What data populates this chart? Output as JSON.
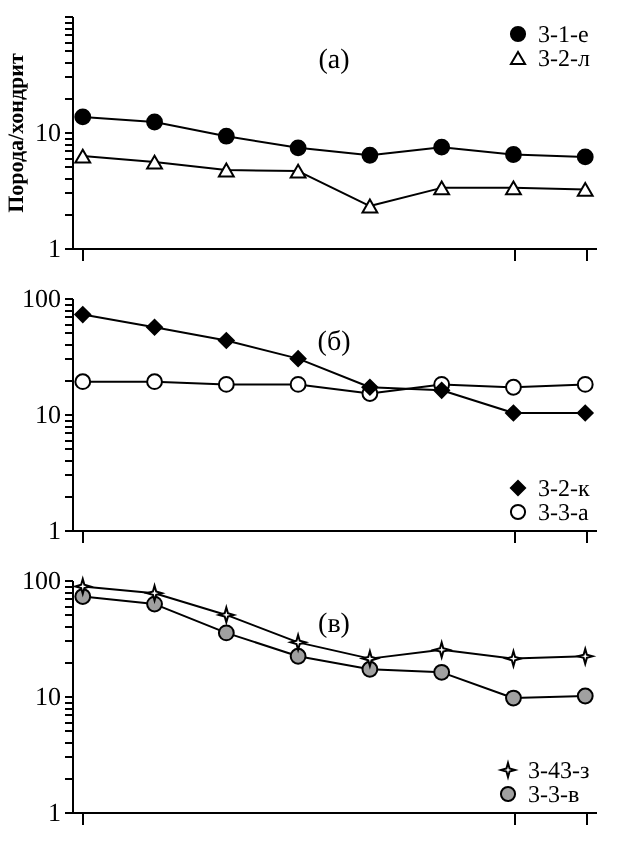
{
  "chart_data": [
    {
      "type": "line",
      "ylabel": "Порода/хондрит",
      "annotations": [
        "(а)"
      ],
      "categories": [
        null,
        null,
        null,
        null,
        null,
        null,
        null,
        null
      ],
      "log": "y",
      "ylim": [
        1,
        100
      ],
      "yticks": [
        1,
        {
          "value": 2,
          "label": null
        },
        {
          "value": 3,
          "label": null
        },
        {
          "value": 4,
          "label": null
        },
        {
          "value": 5,
          "label": null
        },
        {
          "value": 6,
          "label": null
        },
        {
          "value": 7,
          "label": null
        },
        {
          "value": 8,
          "label": null
        },
        {
          "value": 9,
          "label": null
        },
        10,
        {
          "value": 20,
          "label": null
        },
        {
          "value": 30,
          "label": null
        },
        {
          "value": 40,
          "label": null
        },
        {
          "value": 50,
          "label": null
        },
        {
          "value": 60,
          "label": null
        },
        {
          "value": 70,
          "label": null
        },
        {
          "value": 80,
          "label": null
        },
        {
          "value": 90,
          "label": null
        },
        {
          "value": 100,
          "label": null
        }
      ],
      "tick_labels": "y",
      "grid": false,
      "legend": "top right",
      "series": [
        {
          "name": "3-1-е",
          "color": "#000000",
          "marker": "circle",
          "values": [
            13.5,
            12.2,
            9.2,
            7.3,
            6.3,
            7.4,
            6.4,
            6.1
          ]
        },
        {
          "name": "3-2-л",
          "color": "#ffffff",
          "marker": "triangle",
          "values": [
            6.2,
            5.5,
            4.7,
            4.6,
            2.3,
            3.3,
            3.3,
            3.2
          ]
        }
      ]
    },
    {
      "type": "line",
      "annotations": [
        "(б)"
      ],
      "categories": [
        null,
        null,
        null,
        null,
        null,
        null,
        null,
        null
      ],
      "log": "y",
      "ylim": [
        1,
        100
      ],
      "yticks": [
        1,
        {
          "value": 2,
          "label": null
        },
        {
          "value": 3,
          "label": null
        },
        {
          "value": 4,
          "label": null
        },
        {
          "value": 5,
          "label": null
        },
        {
          "value": 6,
          "label": null
        },
        {
          "value": 7,
          "label": null
        },
        {
          "value": 8,
          "label": null
        },
        {
          "value": 9,
          "label": null
        },
        10,
        {
          "value": 20,
          "label": null
        },
        {
          "value": 30,
          "label": null
        },
        {
          "value": 40,
          "label": null
        },
        {
          "value": 50,
          "label": null
        },
        {
          "value": 60,
          "label": null
        },
        {
          "value": 70,
          "label": null
        },
        {
          "value": 80,
          "label": null
        },
        {
          "value": 90,
          "label": null
        },
        100
      ],
      "tick_labels": "y",
      "grid": false,
      "legend": "bottom right",
      "series": [
        {
          "name": "3-2-к",
          "color": "#000000",
          "marker": "diamond",
          "values": [
            72,
            56,
            43,
            30,
            17,
            16,
            10.2,
            10.2
          ]
        },
        {
          "name": "3-3-а",
          "color": "#ffffff",
          "marker": "circle",
          "values": [
            19,
            19,
            18,
            18,
            15,
            18,
            17,
            18
          ]
        }
      ]
    },
    {
      "type": "line",
      "annotations": [
        "(в)"
      ],
      "categories": [
        null,
        null,
        null,
        null,
        null,
        null,
        null,
        null
      ],
      "log": "y",
      "ylim": [
        1,
        100
      ],
      "yticks": [
        1,
        {
          "value": 2,
          "label": null
        },
        {
          "value": 3,
          "label": null
        },
        {
          "value": 4,
          "label": null
        },
        {
          "value": 5,
          "label": null
        },
        {
          "value": 6,
          "label": null
        },
        {
          "value": 7,
          "label": null
        },
        {
          "value": 8,
          "label": null
        },
        {
          "value": 9,
          "label": null
        },
        10,
        {
          "value": 20,
          "label": null
        },
        {
          "value": 30,
          "label": null
        },
        {
          "value": 40,
          "label": null
        },
        {
          "value": 50,
          "label": null
        },
        {
          "value": 60,
          "label": null
        },
        {
          "value": 70,
          "label": null
        },
        {
          "value": 80,
          "label": null
        },
        {
          "value": 90,
          "label": null
        },
        100
      ],
      "tick_labels": "y",
      "grid": false,
      "legend": "bottom right",
      "series": [
        {
          "name": "3-43-з",
          "color": "#ffffff",
          "marker": "star",
          "values": [
            88,
            77,
            50,
            29,
            21,
            25,
            21,
            22
          ]
        },
        {
          "name": "3-3-в",
          "color": "#a0a0a0",
          "marker": "circle",
          "values": [
            72,
            62,
            35,
            22,
            17,
            16,
            9.6,
            10
          ]
        }
      ]
    }
  ]
}
